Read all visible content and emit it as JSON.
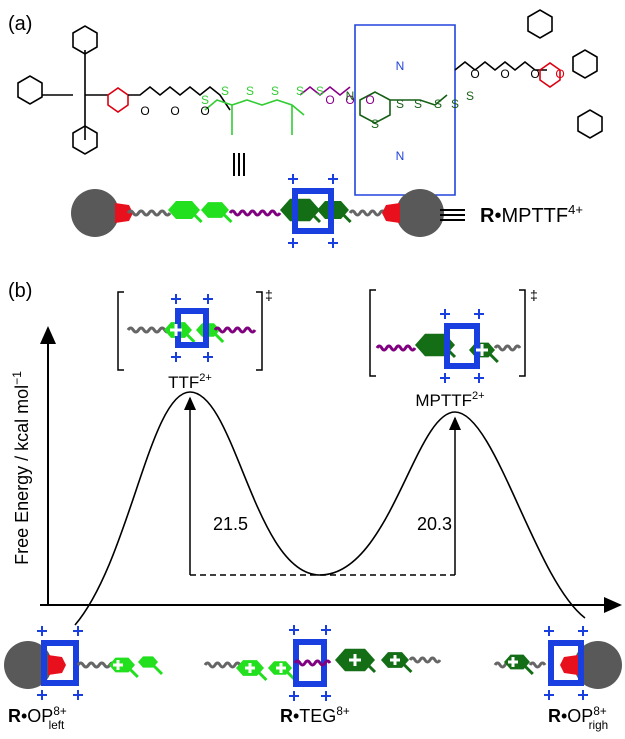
{
  "panel_a": {
    "label": "(a)",
    "structure_atoms": [
      "O",
      "O",
      "O",
      "S",
      "S",
      "S",
      "S",
      "S",
      "S",
      "O",
      "O",
      "O",
      "N",
      "S",
      "S",
      "S",
      "S",
      "S",
      "S",
      "O",
      "O",
      "O",
      "N",
      "N",
      "O"
    ],
    "equiv_label": {
      "prefix": "R",
      "main": "•MPTTF",
      "sup": "4+"
    }
  },
  "panel_b": {
    "label": "(b)",
    "y_axis_label": "Free Energy / kcal mol",
    "y_axis_unit_sup": "−1",
    "transition_states": [
      {
        "label": "TTF",
        "sup": "2+",
        "dagger": "‡",
        "barrier": "21.5"
      },
      {
        "label": "MPTTF",
        "sup": "2+",
        "dagger": "‡",
        "barrier": "20.3"
      }
    ],
    "states": [
      {
        "prefix": "R",
        "main": "•OP",
        "sup": "8+",
        "sub": "left"
      },
      {
        "prefix": "R",
        "main": "•TEG",
        "sup": "8+"
      },
      {
        "prefix": "R",
        "main": "•OP",
        "sup": "8+",
        "sub": "righ"
      }
    ]
  }
}
